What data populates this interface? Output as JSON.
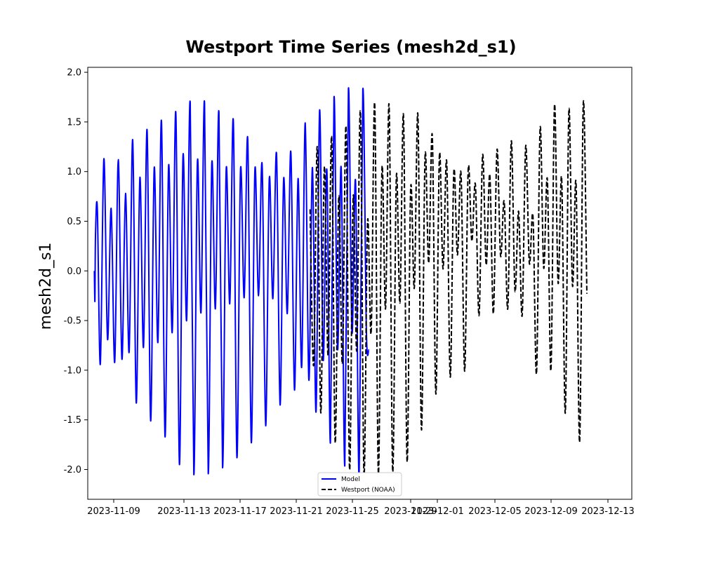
{
  "chart_data": {
    "type": "line",
    "title": "Westport Time Series (mesh2d_s1)",
    "xlabel": "",
    "ylabel": "mesh2d_s1",
    "xlim": [
      "2023-11-06T13:00",
      "2023-12-14T09:00"
    ],
    "ylim": [
      -2.3,
      2.05
    ],
    "grid": false,
    "legend_position": "bottom-center",
    "x_tick_labels": [
      "2023-11-09",
      "2023-11-13",
      "2023-11-17",
      "2023-11-21",
      "2023-11-25",
      "2023-11-29",
      "2023-12-01",
      "2023-12-05",
      "2023-12-09",
      "2023-12-13"
    ],
    "y_tick_labels": [
      "-2.0",
      "-1.5",
      "-1.0",
      "-0.5",
      "0.0",
      "0.5",
      "1.0",
      "1.5",
      "2.0"
    ],
    "y_tick_values": [
      -2.0,
      -1.5,
      -1.0,
      -0.5,
      0.0,
      0.5,
      1.0,
      1.5,
      2.0
    ],
    "series": [
      {
        "name": "Model",
        "color": "#0000ff",
        "style": "solid",
        "x_start": "2023-11-07",
        "x_end": "2023-11-27",
        "points": [
          [
            "2023-11-07T00:00",
            0.0
          ],
          [
            "2023-11-07T01:00",
            -0.3
          ],
          [
            "2023-11-07T02:00",
            0.38
          ],
          [
            "2023-11-07T05:00",
            0.62
          ],
          [
            "2023-11-07T10:00",
            -0.94
          ],
          [
            "2023-11-07T16:00",
            1.13
          ],
          [
            "2023-11-07T22:00",
            -0.69
          ],
          [
            "2023-11-08T04:00",
            0.63
          ],
          [
            "2023-11-08T10:00",
            -0.92
          ],
          [
            "2023-11-08T16:00",
            1.12
          ],
          [
            "2023-11-08T22:00",
            -0.89
          ],
          [
            "2023-11-09T04:00",
            0.78
          ],
          [
            "2023-11-09T10:00",
            -0.82
          ],
          [
            "2023-11-09T16:00",
            1.32
          ],
          [
            "2023-11-09T22:00",
            -1.33
          ],
          [
            "2023-11-10T04:00",
            0.94
          ],
          [
            "2023-11-10T10:00",
            -0.77
          ],
          [
            "2023-11-10T16:00",
            1.42
          ],
          [
            "2023-11-10T22:00",
            -1.51
          ],
          [
            "2023-11-11T04:00",
            1.04
          ],
          [
            "2023-11-11T10:00",
            -0.72
          ],
          [
            "2023-11-11T16:00",
            1.51
          ],
          [
            "2023-11-11T22:00",
            -1.67
          ],
          [
            "2023-11-12T04:00",
            1.06
          ],
          [
            "2023-11-12T10:00",
            -0.62
          ],
          [
            "2023-11-12T16:00",
            1.59
          ],
          [
            "2023-11-12T22:00",
            -1.95
          ],
          [
            "2023-11-13T04:00",
            1.16
          ],
          [
            "2023-11-13T10:00",
            -0.5
          ],
          [
            "2023-11-13T16:00",
            1.69
          ],
          [
            "2023-11-13T22:00",
            -2.05
          ],
          [
            "2023-11-14T04:00",
            1.1
          ],
          [
            "2023-11-14T10:00",
            -0.42
          ],
          [
            "2023-11-14T16:00",
            1.69
          ],
          [
            "2023-11-14T22:00",
            -2.04
          ],
          [
            "2023-11-15T04:00",
            1.08
          ],
          [
            "2023-11-15T10:00",
            -0.38
          ],
          [
            "2023-11-15T16:00",
            1.59
          ],
          [
            "2023-11-15T22:00",
            -1.98
          ],
          [
            "2023-11-16T04:00",
            1.02
          ],
          [
            "2023-11-16T10:00",
            -0.33
          ],
          [
            "2023-11-16T16:00",
            1.51
          ],
          [
            "2023-11-16T22:00",
            -1.88
          ],
          [
            "2023-11-17T04:00",
            1.02
          ],
          [
            "2023-11-17T10:00",
            -0.27
          ],
          [
            "2023-11-17T16:00",
            1.33
          ],
          [
            "2023-11-17T22:00",
            -1.73
          ],
          [
            "2023-11-18T04:00",
            1.02
          ],
          [
            "2023-11-18T10:00",
            -0.25
          ],
          [
            "2023-11-18T16:00",
            1.07
          ],
          [
            "2023-11-18T22:00",
            -1.56
          ],
          [
            "2023-11-19T04:00",
            0.93
          ],
          [
            "2023-11-19T10:00",
            -0.28
          ],
          [
            "2023-11-19T16:00",
            1.18
          ],
          [
            "2023-11-19T22:00",
            -1.35
          ],
          [
            "2023-11-20T04:00",
            0.93
          ],
          [
            "2023-11-20T10:00",
            -0.43
          ],
          [
            "2023-11-20T16:00",
            1.2
          ],
          [
            "2023-11-20T22:00",
            -1.2
          ],
          [
            "2023-11-21T04:00",
            0.93
          ],
          [
            "2023-11-21T10:00",
            -0.97
          ],
          [
            "2023-11-21T16:00",
            1.49
          ],
          [
            "2023-11-21T22:00",
            -1.1
          ],
          [
            "2023-11-22T04:00",
            1.04
          ],
          [
            "2023-11-22T10:00",
            -1.42
          ],
          [
            "2023-11-22T16:00",
            1.62
          ],
          [
            "2023-11-22T22:00",
            -0.9
          ],
          [
            "2023-11-23T04:00",
            1.02
          ],
          [
            "2023-11-23T10:00",
            -1.73
          ],
          [
            "2023-11-23T16:00",
            1.75
          ],
          [
            "2023-11-23T22:00",
            -0.79
          ],
          [
            "2023-11-24T04:00",
            1.04
          ],
          [
            "2023-11-24T10:00",
            -1.96
          ],
          [
            "2023-11-24T16:00",
            1.83
          ],
          [
            "2023-11-24T22:00",
            -0.62
          ],
          [
            "2023-11-25T04:00",
            0.9
          ],
          [
            "2023-11-25T10:00",
            -2.07
          ],
          [
            "2023-11-25T16:00",
            1.82
          ],
          [
            "2023-11-25T22:00",
            -0.6
          ],
          [
            "2023-11-26T02:00",
            -0.8
          ]
        ]
      },
      {
        "name": "Westport (NOAA)",
        "color": "#000000",
        "style": "dashed",
        "x_start": "2023-11-22",
        "x_end": "2023-12-13",
        "points": [
          [
            "2023-11-22T00:00",
            0.62
          ],
          [
            "2023-11-22T06:00",
            -0.95
          ],
          [
            "2023-11-22T12:00",
            1.25
          ],
          [
            "2023-11-22T18:00",
            -1.43
          ],
          [
            "2023-11-23T00:00",
            1.05
          ],
          [
            "2023-11-23T06:00",
            -0.85
          ],
          [
            "2023-11-23T12:00",
            1.35
          ],
          [
            "2023-11-23T18:00",
            -1.73
          ],
          [
            "2023-11-24T00:00",
            0.75
          ],
          [
            "2023-11-24T06:00",
            -0.93
          ],
          [
            "2023-11-24T12:00",
            1.45
          ],
          [
            "2023-11-24T18:00",
            -2.0
          ],
          [
            "2023-11-25T00:00",
            0.75
          ],
          [
            "2023-11-25T06:00",
            -0.8
          ],
          [
            "2023-11-25T12:00",
            1.6
          ],
          [
            "2023-11-25T18:00",
            -2.05
          ],
          [
            "2023-11-26T00:00",
            0.5
          ],
          [
            "2023-11-26T06:00",
            -0.62
          ],
          [
            "2023-11-26T12:00",
            1.68
          ],
          [
            "2023-11-26T18:00",
            -2.04
          ],
          [
            "2023-11-27T00:00",
            1.03
          ],
          [
            "2023-11-27T06:00",
            -0.38
          ],
          [
            "2023-11-27T12:00",
            1.66
          ],
          [
            "2023-11-27T18:00",
            -2.02
          ],
          [
            "2023-11-28T00:00",
            0.95
          ],
          [
            "2023-11-28T06:00",
            -0.32
          ],
          [
            "2023-11-28T12:00",
            1.56
          ],
          [
            "2023-11-28T18:00",
            -1.92
          ],
          [
            "2023-11-29T00:00",
            0.83
          ],
          [
            "2023-11-29T06:00",
            -0.17
          ],
          [
            "2023-11-29T12:00",
            1.57
          ],
          [
            "2023-11-29T18:00",
            -1.6
          ],
          [
            "2023-11-30T00:00",
            1.16
          ],
          [
            "2023-11-30T06:00",
            0.08
          ],
          [
            "2023-11-30T12:00",
            1.36
          ],
          [
            "2023-11-30T18:00",
            -1.24
          ],
          [
            "2023-12-01T00:00",
            1.17
          ],
          [
            "2023-12-01T06:00",
            0.02
          ],
          [
            "2023-12-01T12:00",
            1.1
          ],
          [
            "2023-12-01T18:00",
            -1.07
          ],
          [
            "2023-12-02T00:00",
            1.0
          ],
          [
            "2023-12-02T06:00",
            0.16
          ],
          [
            "2023-12-02T12:00",
            0.98
          ],
          [
            "2023-12-02T18:00",
            -1.01
          ],
          [
            "2023-12-03T00:00",
            1.03
          ],
          [
            "2023-12-03T06:00",
            0.3
          ],
          [
            "2023-12-03T12:00",
            0.87
          ],
          [
            "2023-12-03T18:00",
            -0.45
          ],
          [
            "2023-12-04T00:00",
            1.17
          ],
          [
            "2023-12-04T06:00",
            0.06
          ],
          [
            "2023-12-04T12:00",
            0.97
          ],
          [
            "2023-12-04T18:00",
            -0.43
          ],
          [
            "2023-12-05T00:00",
            1.22
          ],
          [
            "2023-12-05T06:00",
            0.15
          ],
          [
            "2023-12-05T12:00",
            0.7
          ],
          [
            "2023-12-05T18:00",
            -0.38
          ],
          [
            "2023-12-06T00:00",
            1.31
          ],
          [
            "2023-12-06T06:00",
            -0.2
          ],
          [
            "2023-12-06T12:00",
            0.6
          ],
          [
            "2023-12-06T18:00",
            -0.45
          ],
          [
            "2023-12-07T00:00",
            1.26
          ],
          [
            "2023-12-07T06:00",
            0.08
          ],
          [
            "2023-12-07T12:00",
            0.55
          ],
          [
            "2023-12-07T18:00",
            -1.03
          ],
          [
            "2023-12-08T00:00",
            1.44
          ],
          [
            "2023-12-08T06:00",
            0.03
          ],
          [
            "2023-12-08T12:00",
            0.92
          ],
          [
            "2023-12-08T18:00",
            -1.0
          ],
          [
            "2023-12-09T00:00",
            1.67
          ],
          [
            "2023-12-09T06:00",
            -0.12
          ],
          [
            "2023-12-09T12:00",
            0.93
          ],
          [
            "2023-12-09T18:00",
            -1.43
          ],
          [
            "2023-12-10T00:00",
            1.62
          ],
          [
            "2023-12-10T06:00",
            -0.15
          ],
          [
            "2023-12-10T12:00",
            0.88
          ],
          [
            "2023-12-10T18:00",
            -1.72
          ],
          [
            "2023-12-11T00:00",
            1.69
          ],
          [
            "2023-12-11T06:00",
            -0.23
          ]
        ]
      }
    ]
  }
}
